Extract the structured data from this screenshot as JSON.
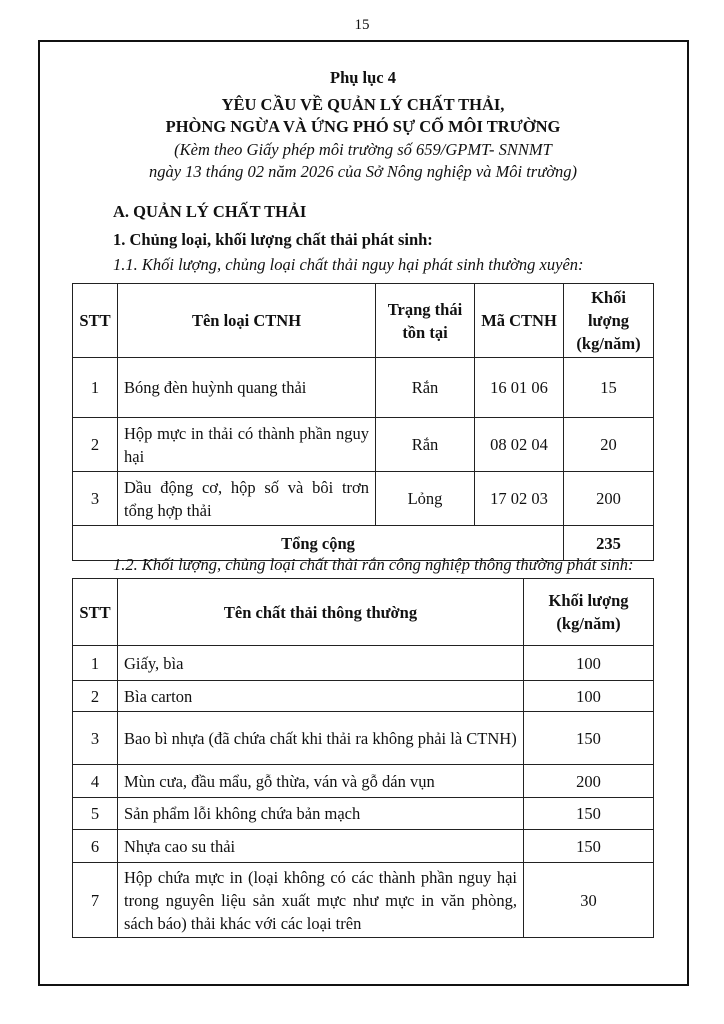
{
  "page_number": "15",
  "appendix": "Phụ lục 4",
  "title_line1": "YÊU CẦU VỀ QUẢN LÝ CHẤT THẢI,",
  "title_line2": "PHÒNG NGỪA VÀ ỨNG PHÓ SỰ CỐ MÔI TRƯỜNG",
  "subtitle_line1": "(Kèm theo Giấy phép môi trường số 659/GPMT- SNNMT",
  "subtitle_line2": "ngày 13 tháng 02 năm 2026 của Sở Nông nghiệp và Môi trường)",
  "section_a": "A. QUẢN LÝ CHẤT THẢI",
  "section_1": "1. Chủng loại, khối lượng chất thải phát sinh:",
  "section_1_1": "1.1. Khối lượng, chủng loại chất thải nguy hại phát sinh thường xuyên:",
  "table1": {
    "headers": [
      "STT",
      "Tên loại CTNH",
      "Trạng thái tồn tại",
      "Mã CTNH",
      "Khối lượng (kg/năm)"
    ],
    "rows": [
      [
        "1",
        "Bóng đèn huỳnh quang thải",
        "Rắn",
        "16 01 06",
        "15"
      ],
      [
        "2",
        "Hộp mực in thải có thành phần nguy hại",
        "Rắn",
        "08 02 04",
        "20"
      ],
      [
        "3",
        "Dầu động cơ, hộp số và bôi trơn tổng hợp thải",
        "Lỏng",
        "17 02 03",
        "200"
      ]
    ],
    "total_label": "Tổng cộng",
    "total_value": "235"
  },
  "section_1_2": "1.2. Khối lượng, chủng loại chất thải rắn công nghiệp thông thường phát sinh:",
  "table2": {
    "headers": [
      "STT",
      "Tên chất thải thông thường",
      "Khối lượng (kg/năm)"
    ],
    "rows": [
      [
        "1",
        "Giấy, bìa",
        "100"
      ],
      [
        "2",
        "Bìa carton",
        "100"
      ],
      [
        "3",
        "Bao bì nhựa (đã chứa chất khi thải ra không phải là CTNH)",
        "150"
      ],
      [
        "4",
        "Mùn cưa, đầu mẩu, gỗ thừa, ván và gỗ dán vụn",
        "200"
      ],
      [
        "5",
        "Sản phẩm lỗi không chứa bản mạch",
        "150"
      ],
      [
        "6",
        "Nhựa cao su thải",
        "150"
      ],
      [
        "7",
        "Hộp chứa mực in (loại không có các thành phần nguy hại trong nguyên liệu sản xuất mực như mực in văn phòng, sách báo) thải khác với các loại trên",
        "30"
      ]
    ]
  }
}
